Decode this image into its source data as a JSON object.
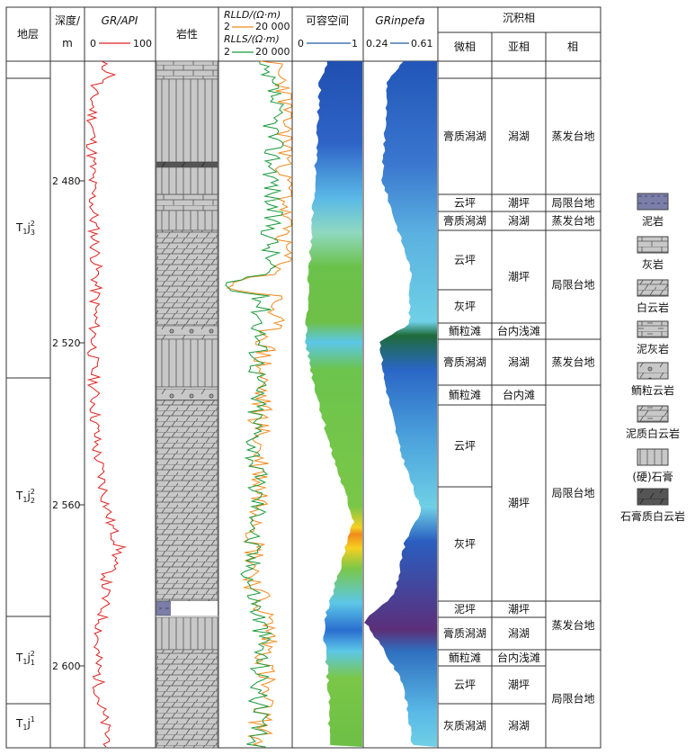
{
  "headers": {
    "stratum": "地层",
    "depth_line1": "深度/",
    "depth_line2": "m",
    "gr_label": "GR/API",
    "gr_min": "0",
    "gr_max": "100",
    "lithology": "岩性",
    "rlld_label": "RLLD/(Ω·m)",
    "rlld_min": "2",
    "rlld_max": "20 000",
    "rlls_label": "RLLS/(Ω·m)",
    "rlls_min": "2",
    "rlls_max": "20 000",
    "accommodation": "可容空间",
    "acc_min": "0",
    "acc_max": "1",
    "grinpefa_label": "GRinpefa",
    "grin_min": "0.24",
    "grin_max": "0.61",
    "facies_group": "沉积相",
    "microfacies": "微相",
    "subfacies": "亚相",
    "facies": "相"
  },
  "depth_ticks": [
    "2 480",
    "2 520",
    "2 560",
    "2 600"
  ],
  "strata": [
    "T1j23",
    "T1j22",
    "T1j21",
    "T1j1"
  ],
  "strata_parts": [
    {
      "main": "T",
      "sub1": "1",
      "j": "j",
      "sup": "2",
      "sub2": "3"
    },
    {
      "main": "T",
      "sub1": "1",
      "j": "j",
      "sup": "2",
      "sub2": "2"
    },
    {
      "main": "T",
      "sub1": "1",
      "j": "j",
      "sup": "2",
      "sub2": "1"
    },
    {
      "main": "T",
      "sub1": "1",
      "j": "j",
      "sup": "1",
      "sub2": ""
    }
  ],
  "microfacies": [
    "膏质潟湖",
    "云坪",
    "膏质潟湖",
    "云坪",
    "灰坪",
    "鲕粒滩",
    "膏质潟湖",
    "鲕粒滩",
    "云坪",
    "灰坪",
    "泥坪",
    "膏质潟湖",
    "鲕粒滩",
    "云坪",
    "灰质潟湖"
  ],
  "subfacies": [
    "潟湖",
    "潮坪",
    "潟湖",
    "潮坪",
    "台内浅滩",
    "潟湖",
    "台内滩",
    "潮坪",
    "潮坪",
    "潟湖",
    "台内浅滩",
    "潮坪",
    "潟湖"
  ],
  "facies": [
    "蒸发台地",
    "局限台地",
    "蒸发台地",
    "局限台地",
    "蒸发台地",
    "局限台地",
    "蒸发台地",
    "局限台地"
  ],
  "legend": [
    {
      "label": "泥岩",
      "icon": "mudstone-pattern"
    },
    {
      "label": "灰岩",
      "icon": "limestone-pattern"
    },
    {
      "label": "白云岩",
      "icon": "dolomite-pattern"
    },
    {
      "label": "泥灰岩",
      "icon": "marl-pattern"
    },
    {
      "label": "鲕粒云岩",
      "icon": "oolitic-dolomite-pattern"
    },
    {
      "label": "泥质白云岩",
      "icon": "argillaceous-dolomite-pattern"
    },
    {
      "label": "(硬)石膏",
      "icon": "anhydrite-pattern"
    },
    {
      "label": "石膏质白云岩",
      "icon": "gypsiferous-dolomite-pattern"
    }
  ],
  "colors": {
    "gr": "#e02020",
    "rlld": "#f08a1c",
    "rlls": "#1a9a3c",
    "acc_line": "#1f5aa8"
  }
}
